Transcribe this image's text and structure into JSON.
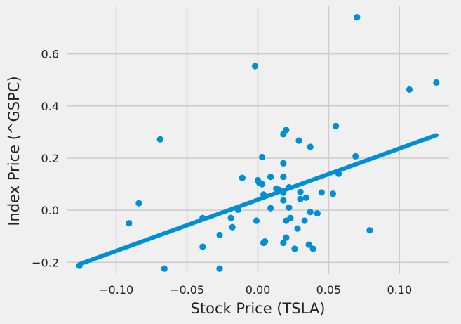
{
  "colors": {
    "background": "#f0f0f0",
    "grid": "#cbcbcb",
    "series": "#008fd5"
  },
  "chart_data": {
    "type": "scatter",
    "title": "",
    "xlabel": "Stock Price (TSLA)",
    "ylabel": "Index Price (^GSPC)",
    "xlim": [
      -0.135,
      0.135
    ],
    "ylim": [
      -0.245,
      0.785
    ],
    "xticks": [
      -0.1,
      -0.05,
      0.0,
      0.05,
      0.1
    ],
    "xtick_labels": [
      "−0.10",
      "−0.05",
      "0.00",
      "0.05",
      "0.10"
    ],
    "yticks": [
      -0.2,
      0.0,
      0.2,
      0.4,
      0.6
    ],
    "ytick_labels": [
      "−0.2",
      "0.0",
      "0.2",
      "0.4",
      "0.6"
    ],
    "grid": true,
    "series": [
      {
        "kind": "scatter",
        "x": [
          0.07,
          -0.002,
          0.107,
          0.126,
          -0.069,
          0.055,
          0.02,
          0.018,
          0.029,
          0.037,
          0.069,
          0.003,
          0.018,
          0.057,
          -0.011,
          0.009,
          0.018,
          0.0,
          0.001,
          0.003,
          0.022,
          0.013,
          0.015,
          0.004,
          0.018,
          0.03,
          0.045,
          0.053,
          0.034,
          0.018,
          0.03,
          -0.084,
          0.009,
          0.022,
          -0.014,
          0.037,
          0.042,
          -0.019,
          0.02,
          0.023,
          -0.039,
          -0.091,
          -0.001,
          0.033,
          -0.018,
          0.079,
          0.028,
          -0.027,
          0.02,
          0.005,
          0.004,
          0.018,
          -0.039,
          0.036,
          0.026,
          0.039,
          -0.126,
          -0.066,
          -0.027
        ],
        "y": [
          0.74,
          0.553,
          0.463,
          0.49,
          0.272,
          0.323,
          0.308,
          0.292,
          0.267,
          0.243,
          0.207,
          0.204,
          0.18,
          0.14,
          0.124,
          0.128,
          0.128,
          0.115,
          0.105,
          0.1,
          0.088,
          0.083,
          0.078,
          0.06,
          0.067,
          0.07,
          0.068,
          0.063,
          0.048,
          0.038,
          0.043,
          0.027,
          0.008,
          0.01,
          0.002,
          -0.007,
          -0.012,
          -0.03,
          -0.04,
          -0.03,
          -0.03,
          -0.05,
          -0.04,
          -0.04,
          -0.065,
          -0.077,
          -0.07,
          -0.095,
          -0.105,
          -0.12,
          -0.125,
          -0.125,
          -0.14,
          -0.132,
          -0.148,
          -0.148,
          -0.213,
          -0.224,
          -0.224
        ]
      },
      {
        "kind": "fit-line",
        "x": [
          -0.126,
          0.126
        ],
        "y": [
          -0.207,
          0.288
        ]
      }
    ]
  }
}
